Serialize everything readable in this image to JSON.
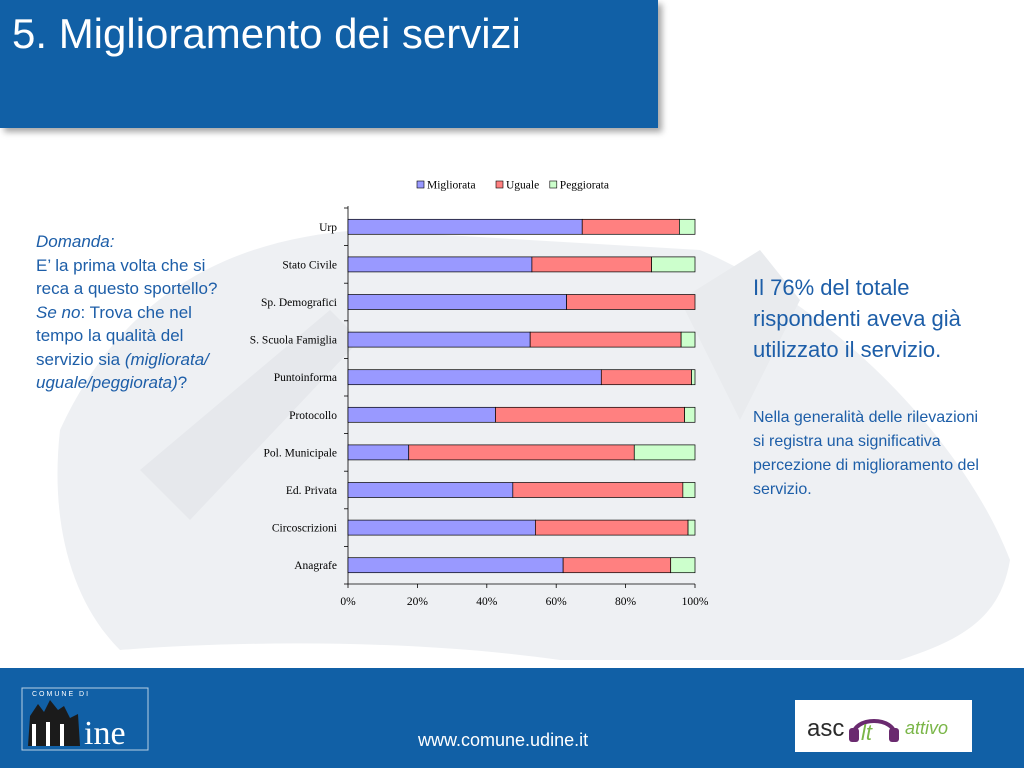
{
  "slide": {
    "title": "5. Miglioramento dei servizi"
  },
  "question": {
    "label": "Domanda:",
    "text": "E’ la prima volta che si reca a questo sportello?",
    "if_no_label": "Se no",
    "if_no_text": ": Trova che nel tempo la qualità del servizio sia",
    "options": "(migliorata/ uguale/peggiorata)",
    "question_mark": "?"
  },
  "findings": {
    "headline": "Il 76% del totale rispondenti aveva già utilizzato il servizio.",
    "detail": "Nella generalità delle rilevazioni si registra una significativa percezione di miglioramento del servizio."
  },
  "footer": {
    "url": "www.comune.udine.it",
    "logo_left_text": "COMUNE DI udine",
    "logo_right_text": "ascolto attivo"
  },
  "colors": {
    "brand_blue": "#1160a6",
    "text_blue": "#1d5ea8",
    "migliorata": "#9999ff",
    "uguale": "#ff8080",
    "peggiorata": "#ccffcc"
  },
  "chart_data": {
    "type": "bar",
    "orientation": "horizontal",
    "stacked": true,
    "percent": true,
    "title": "",
    "xlabel": "",
    "ylabel": "",
    "categories": [
      "Urp",
      "Stato Civile",
      "Sp. Demografici",
      "S. Scuola Famiglia",
      "Puntoinforma",
      "Protocollo",
      "Pol. Municipale",
      "Ed. Privata",
      "Circoscrizioni",
      "Anagrafe"
    ],
    "series": [
      {
        "name": "Migliorata",
        "color": "#9999ff",
        "values": [
          67.5,
          53,
          63,
          52.5,
          73,
          42.5,
          17.5,
          47.5,
          54,
          62
        ]
      },
      {
        "name": "Uguale",
        "color": "#ff8080",
        "values": [
          28,
          34.5,
          37,
          43.5,
          26,
          54.5,
          65,
          49,
          44,
          31
        ]
      },
      {
        "name": "Peggiorata",
        "color": "#ccffcc",
        "values": [
          4.5,
          12.5,
          0,
          4,
          1,
          3,
          17.5,
          3.5,
          2,
          7
        ]
      }
    ],
    "xlim": [
      0,
      100
    ],
    "x_ticks": [
      "0%",
      "20%",
      "40%",
      "60%",
      "80%",
      "100%"
    ],
    "legend": "top"
  }
}
